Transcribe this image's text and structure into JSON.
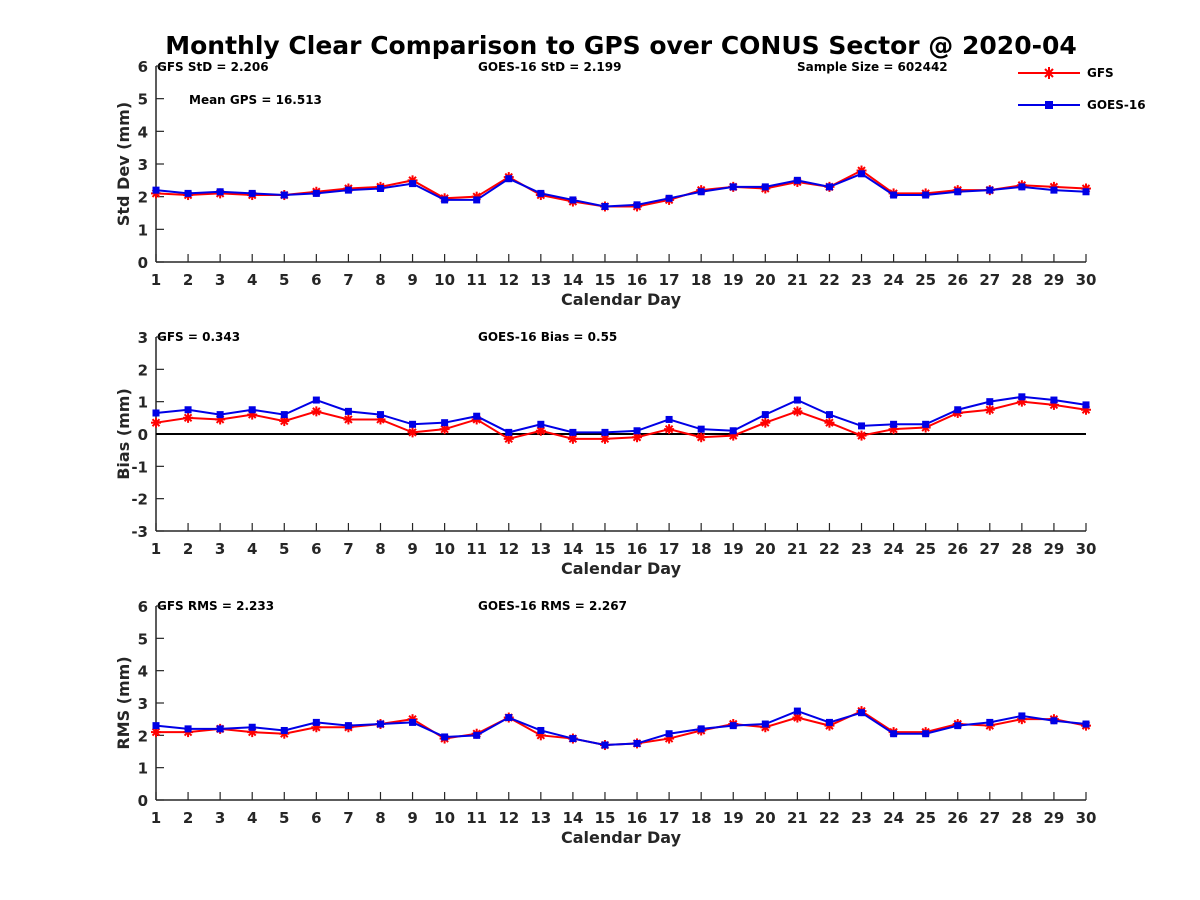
{
  "figure": {
    "title": "Monthly Clear Comparison to GPS over CONUS Sector @ 2020-04"
  },
  "legend": {
    "placement": "top-right",
    "entries": [
      {
        "name": "GFS",
        "color": "#ff0000",
        "marker": "asterisk"
      },
      {
        "name": "GOES-16",
        "color": "#0000e6",
        "marker": "square"
      }
    ]
  },
  "chart_data": [
    {
      "type": "line",
      "title": "",
      "xlabel": "Calendar Day",
      "ylabel": "Std Dev (mm)",
      "xlim": [
        1,
        30
      ],
      "ylim": [
        0,
        6
      ],
      "yticks": [
        0,
        1,
        2,
        3,
        4,
        5,
        6
      ],
      "x": [
        1,
        2,
        3,
        4,
        5,
        6,
        7,
        8,
        9,
        10,
        11,
        12,
        13,
        14,
        15,
        16,
        17,
        18,
        19,
        20,
        21,
        22,
        23,
        24,
        25,
        26,
        27,
        28,
        29,
        30
      ],
      "zero_line": false,
      "annotations": [
        "GFS StD = 2.206",
        "GOES-16 StD = 2.199",
        "Sample Size = 602442",
        "Mean GPS = 16.513"
      ],
      "series": [
        {
          "name": "GFS",
          "values": [
            2.1,
            2.05,
            2.1,
            2.05,
            2.05,
            2.15,
            2.25,
            2.3,
            2.5,
            1.95,
            2.0,
            2.6,
            2.05,
            1.85,
            1.7,
            1.7,
            1.9,
            2.2,
            2.3,
            2.25,
            2.45,
            2.3,
            2.8,
            2.1,
            2.1,
            2.2,
            2.2,
            2.35,
            2.3,
            2.25
          ]
        },
        {
          "name": "GOES-16",
          "values": [
            2.2,
            2.1,
            2.15,
            2.1,
            2.05,
            2.1,
            2.2,
            2.25,
            2.4,
            1.9,
            1.9,
            2.55,
            2.1,
            1.9,
            1.7,
            1.75,
            1.95,
            2.15,
            2.3,
            2.3,
            2.5,
            2.3,
            2.7,
            2.05,
            2.05,
            2.15,
            2.2,
            2.3,
            2.2,
            2.15
          ]
        }
      ]
    },
    {
      "type": "line",
      "title": "",
      "xlabel": "Calendar Day",
      "ylabel": "Bias (mm)",
      "xlim": [
        1,
        30
      ],
      "ylim": [
        -3,
        3
      ],
      "yticks": [
        -3,
        -2,
        -1,
        0,
        1,
        2,
        3
      ],
      "x": [
        1,
        2,
        3,
        4,
        5,
        6,
        7,
        8,
        9,
        10,
        11,
        12,
        13,
        14,
        15,
        16,
        17,
        18,
        19,
        20,
        21,
        22,
        23,
        24,
        25,
        26,
        27,
        28,
        29,
        30
      ],
      "zero_line": true,
      "annotations": [
        "GFS = 0.343",
        "GOES-16 Bias = 0.55"
      ],
      "series": [
        {
          "name": "GFS",
          "values": [
            0.35,
            0.5,
            0.45,
            0.6,
            0.4,
            0.7,
            0.45,
            0.45,
            0.05,
            0.15,
            0.45,
            -0.15,
            0.1,
            -0.15,
            -0.15,
            -0.1,
            0.15,
            -0.1,
            -0.05,
            0.35,
            0.7,
            0.35,
            -0.05,
            0.15,
            0.2,
            0.65,
            0.75,
            1.0,
            0.9,
            0.75
          ]
        },
        {
          "name": "GOES-16",
          "values": [
            0.65,
            0.75,
            0.6,
            0.75,
            0.6,
            1.05,
            0.7,
            0.6,
            0.3,
            0.35,
            0.55,
            0.05,
            0.3,
            0.05,
            0.05,
            0.1,
            0.45,
            0.15,
            0.1,
            0.6,
            1.05,
            0.6,
            0.25,
            0.3,
            0.3,
            0.75,
            1.0,
            1.15,
            1.05,
            0.9
          ]
        }
      ]
    },
    {
      "type": "line",
      "title": "",
      "xlabel": "Calendar Day",
      "ylabel": "RMS (mm)",
      "xlim": [
        1,
        30
      ],
      "ylim": [
        0,
        6
      ],
      "yticks": [
        0,
        1,
        2,
        3,
        4,
        5,
        6
      ],
      "x": [
        1,
        2,
        3,
        4,
        5,
        6,
        7,
        8,
        9,
        10,
        11,
        12,
        13,
        14,
        15,
        16,
        17,
        18,
        19,
        20,
        21,
        22,
        23,
        24,
        25,
        26,
        27,
        28,
        29,
        30
      ],
      "zero_line": false,
      "annotations": [
        "GFS RMS = 2.233",
        "GOES-16 RMS = 2.267"
      ],
      "series": [
        {
          "name": "GFS",
          "values": [
            2.1,
            2.1,
            2.2,
            2.1,
            2.05,
            2.25,
            2.25,
            2.35,
            2.5,
            1.9,
            2.05,
            2.55,
            2.0,
            1.9,
            1.7,
            1.75,
            1.9,
            2.15,
            2.35,
            2.25,
            2.55,
            2.3,
            2.75,
            2.1,
            2.1,
            2.35,
            2.3,
            2.5,
            2.5,
            2.3
          ]
        },
        {
          "name": "GOES-16",
          "values": [
            2.3,
            2.2,
            2.2,
            2.25,
            2.15,
            2.4,
            2.3,
            2.35,
            2.4,
            1.95,
            2.0,
            2.55,
            2.15,
            1.9,
            1.7,
            1.75,
            2.05,
            2.2,
            2.3,
            2.35,
            2.75,
            2.4,
            2.7,
            2.05,
            2.05,
            2.3,
            2.4,
            2.6,
            2.45,
            2.35
          ]
        }
      ]
    }
  ]
}
